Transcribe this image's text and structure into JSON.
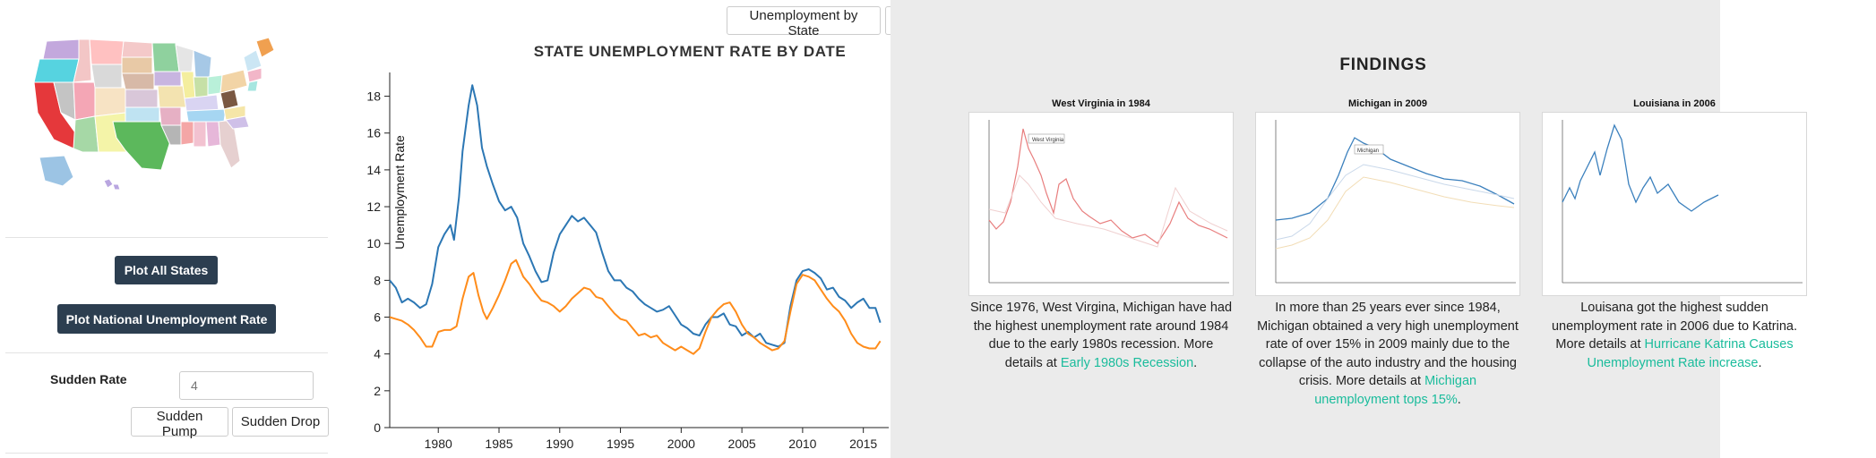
{
  "sidebar": {
    "plot_all_label": "Plot All States",
    "plot_national_label": "Plot National Unemployment Rate",
    "rate_label": "Sudden Rate",
    "rate_placeholder": "4",
    "pump_label": "Sudden Pump",
    "drop_label": "Sudden Drop"
  },
  "tabs": {
    "unemployment_by_state": "Unemployment by State"
  },
  "colors": {
    "dark_button": "#2c3e50",
    "series_blue": "#2c77b4",
    "series_orange": "#ff8c1a",
    "link": "#1abc9c",
    "findings_bg": "#ebebeb"
  },
  "chart_data": {
    "type": "line",
    "title": "STATE UNEMPLOYMENT RATE BY DATE",
    "ylabel": "Unemployment Rate",
    "xlabel": "",
    "xlim": [
      1976,
      2016.5
    ],
    "ylim": [
      0,
      19
    ],
    "x_ticks": [
      1980,
      1985,
      1990,
      1995,
      2000,
      2005,
      2010,
      2015
    ],
    "y_ticks": [
      0,
      2,
      4,
      6,
      8,
      10,
      12,
      14,
      16,
      18
    ],
    "grid": false,
    "series": [
      {
        "color": "#2c77b4",
        "points": [
          [
            1976,
            8.0
          ],
          [
            1976.5,
            7.6
          ],
          [
            1977,
            6.8
          ],
          [
            1977.5,
            7.0
          ],
          [
            1978,
            6.8
          ],
          [
            1978.5,
            6.5
          ],
          [
            1979,
            6.7
          ],
          [
            1979.5,
            7.8
          ],
          [
            1980,
            9.8
          ],
          [
            1980.5,
            10.5
          ],
          [
            1981,
            11.0
          ],
          [
            1981.3,
            10.2
          ],
          [
            1981.7,
            12.5
          ],
          [
            1982,
            15.0
          ],
          [
            1982.5,
            17.5
          ],
          [
            1982.8,
            18.6
          ],
          [
            1983.2,
            17.5
          ],
          [
            1983.6,
            15.2
          ],
          [
            1984,
            14.2
          ],
          [
            1984.5,
            13.2
          ],
          [
            1985,
            12.3
          ],
          [
            1985.5,
            11.8
          ],
          [
            1986,
            12.0
          ],
          [
            1986.5,
            11.4
          ],
          [
            1987,
            10.0
          ],
          [
            1987.5,
            9.3
          ],
          [
            1988,
            8.5
          ],
          [
            1988.5,
            7.9
          ],
          [
            1989,
            8.0
          ],
          [
            1989.5,
            9.5
          ],
          [
            1990,
            10.5
          ],
          [
            1990.5,
            11.0
          ],
          [
            1991,
            11.5
          ],
          [
            1991.5,
            11.2
          ],
          [
            1992,
            11.4
          ],
          [
            1992.5,
            11.0
          ],
          [
            1993,
            10.6
          ],
          [
            1993.5,
            9.5
          ],
          [
            1994,
            8.5
          ],
          [
            1994.5,
            8.0
          ],
          [
            1995,
            8.0
          ],
          [
            1995.5,
            7.6
          ],
          [
            1996,
            7.4
          ],
          [
            1996.5,
            7.0
          ],
          [
            1997,
            6.7
          ],
          [
            1997.5,
            6.5
          ],
          [
            1998,
            6.3
          ],
          [
            1998.5,
            6.4
          ],
          [
            1999,
            6.6
          ],
          [
            1999.5,
            6.1
          ],
          [
            2000,
            5.6
          ],
          [
            2000.5,
            5.4
          ],
          [
            2001,
            5.1
          ],
          [
            2001.5,
            5.0
          ],
          [
            2002,
            5.6
          ],
          [
            2002.5,
            6.0
          ],
          [
            2003,
            6.0
          ],
          [
            2003.5,
            6.2
          ],
          [
            2004,
            5.6
          ],
          [
            2004.5,
            5.5
          ],
          [
            2005,
            5.0
          ],
          [
            2005.5,
            5.2
          ],
          [
            2006,
            4.9
          ],
          [
            2006.5,
            5.1
          ],
          [
            2007,
            4.6
          ],
          [
            2007.5,
            4.5
          ],
          [
            2008,
            4.4
          ],
          [
            2008.5,
            4.6
          ],
          [
            2009,
            6.6
          ],
          [
            2009.5,
            8.0
          ],
          [
            2010,
            8.5
          ],
          [
            2010.5,
            8.6
          ],
          [
            2011,
            8.4
          ],
          [
            2011.5,
            8.1
          ],
          [
            2012,
            7.5
          ],
          [
            2012.5,
            7.6
          ],
          [
            2013,
            7.1
          ],
          [
            2013.5,
            6.9
          ],
          [
            2014,
            6.5
          ],
          [
            2014.5,
            6.8
          ],
          [
            2015,
            7.0
          ],
          [
            2015.5,
            6.5
          ],
          [
            2016,
            6.5
          ],
          [
            2016.4,
            5.7
          ]
        ]
      },
      {
        "color": "#ff8c1a",
        "points": [
          [
            1976,
            6.0
          ],
          [
            1976.5,
            5.9
          ],
          [
            1977,
            5.8
          ],
          [
            1977.5,
            5.6
          ],
          [
            1978,
            5.3
          ],
          [
            1978.5,
            4.9
          ],
          [
            1979,
            4.4
          ],
          [
            1979.5,
            4.4
          ],
          [
            1980,
            5.2
          ],
          [
            1980.5,
            5.3
          ],
          [
            1981,
            5.3
          ],
          [
            1981.5,
            5.5
          ],
          [
            1982,
            7.0
          ],
          [
            1982.5,
            8.2
          ],
          [
            1982.9,
            8.4
          ],
          [
            1983.3,
            7.2
          ],
          [
            1983.7,
            6.3
          ],
          [
            1984,
            5.9
          ],
          [
            1984.5,
            6.5
          ],
          [
            1985,
            7.2
          ],
          [
            1985.5,
            8.0
          ],
          [
            1986,
            8.9
          ],
          [
            1986.4,
            9.1
          ],
          [
            1986.8,
            8.5
          ],
          [
            1987,
            8.2
          ],
          [
            1987.5,
            7.8
          ],
          [
            1988,
            7.3
          ],
          [
            1988.5,
            6.9
          ],
          [
            1989,
            6.8
          ],
          [
            1989.5,
            6.6
          ],
          [
            1990,
            6.3
          ],
          [
            1990.5,
            6.6
          ],
          [
            1991,
            7.0
          ],
          [
            1991.5,
            7.3
          ],
          [
            1992,
            7.6
          ],
          [
            1992.5,
            7.5
          ],
          [
            1993,
            7.1
          ],
          [
            1993.5,
            7.0
          ],
          [
            1994,
            6.6
          ],
          [
            1994.5,
            6.2
          ],
          [
            1995,
            5.9
          ],
          [
            1995.5,
            5.8
          ],
          [
            1996,
            5.4
          ],
          [
            1996.5,
            5.0
          ],
          [
            1997,
            5.1
          ],
          [
            1997.5,
            4.9
          ],
          [
            1998,
            5.0
          ],
          [
            1998.5,
            4.6
          ],
          [
            1999,
            4.4
          ],
          [
            1999.5,
            4.2
          ],
          [
            2000,
            4.4
          ],
          [
            2000.5,
            4.2
          ],
          [
            2001,
            4.0
          ],
          [
            2001.5,
            4.3
          ],
          [
            2002,
            5.2
          ],
          [
            2002.5,
            6.0
          ],
          [
            2003,
            6.4
          ],
          [
            2003.5,
            6.7
          ],
          [
            2004,
            6.8
          ],
          [
            2004.5,
            6.3
          ],
          [
            2005,
            5.6
          ],
          [
            2005.5,
            5.1
          ],
          [
            2006,
            4.9
          ],
          [
            2006.5,
            4.6
          ],
          [
            2007,
            4.4
          ],
          [
            2007.5,
            4.2
          ],
          [
            2008,
            4.3
          ],
          [
            2008.5,
            4.7
          ],
          [
            2009,
            6.3
          ],
          [
            2009.5,
            7.8
          ],
          [
            2010,
            8.3
          ],
          [
            2010.5,
            8.2
          ],
          [
            2011,
            8.0
          ],
          [
            2011.5,
            7.5
          ],
          [
            2012,
            7.0
          ],
          [
            2012.5,
            6.6
          ],
          [
            2013,
            6.3
          ],
          [
            2013.5,
            5.8
          ],
          [
            2014,
            5.1
          ],
          [
            2014.5,
            4.6
          ],
          [
            2015,
            4.4
          ],
          [
            2015.5,
            4.3
          ],
          [
            2016,
            4.3
          ],
          [
            2016.4,
            4.7
          ]
        ]
      }
    ]
  },
  "findings": {
    "title": "FINDINGS",
    "cards": [
      {
        "title": "West Virginia in 1984",
        "text": "Since 1976, West Virgina, Michigan have had the highest unemployment rate around 1984 due to the early 1980s recession. More details at ",
        "link": "Early 1980s Recession",
        "tail": ".",
        "thumb_label": "West Virginia"
      },
      {
        "title": "Michigan in 2009",
        "text": "In more than 25 years ever since 1984, Michigan obtained a very high unemployment rate of over 15% in 2009 mainly due to the collapse of the auto industry and the housing crisis. More details at ",
        "link": "Michigan unemployment tops 15%",
        "tail": ".",
        "thumb_label": "Michigan"
      },
      {
        "title": "Louisiana in 2006",
        "text": "Louisana got the highest sudden unemployment rate in 2006 due to Katrina. More details at ",
        "link": "Hurricane Katrina Causes Unemployment Rate increase",
        "tail": ".",
        "thumb_label": ""
      }
    ]
  }
}
